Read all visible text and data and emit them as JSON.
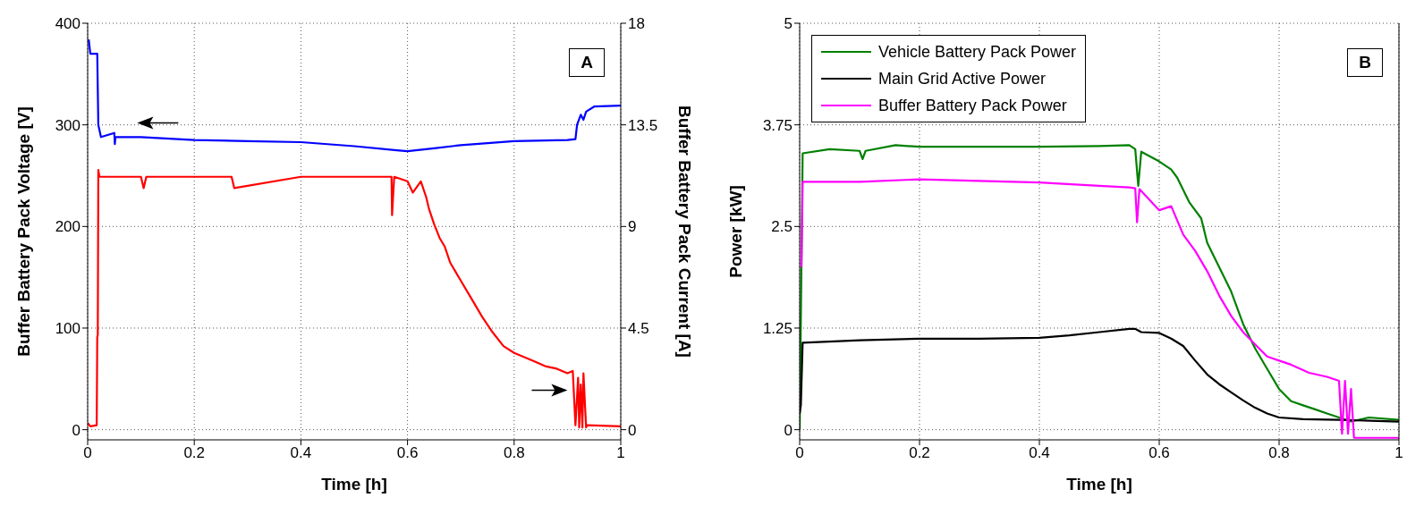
{
  "chart_data": [
    {
      "type": "line",
      "xlabel": "Time [h]",
      "ylabel": "Buffer Battery Pack Voltage [V]",
      "y2label": "Buffer Battery Pack Current [A]",
      "annotations": [
        "A"
      ],
      "xlim": [
        0,
        1
      ],
      "xticks": [
        0,
        0.2,
        0.4,
        0.6,
        0.8,
        1
      ],
      "ylim": [
        -10,
        400
      ],
      "yticks": [
        0,
        100,
        200,
        300,
        400
      ],
      "y2lim": [
        -0.45,
        18
      ],
      "y2ticks": [
        0,
        4.5,
        9,
        13.5,
        18
      ],
      "grid": true,
      "series": [
        {
          "color": "#0000ff",
          "x": [
            0.002,
            0.005,
            0.018,
            0.02,
            0.025,
            0.05,
            0.051,
            0.052,
            0.1,
            0.2,
            0.3,
            0.4,
            0.5,
            0.58,
            0.6,
            0.65,
            0.7,
            0.8,
            0.9,
            0.915,
            0.918,
            0.925,
            0.93,
            0.935,
            0.95,
            1
          ],
          "values": [
            384,
            370,
            370,
            300,
            288,
            292,
            281,
            288,
            288,
            285,
            284,
            283,
            279,
            275,
            274,
            277,
            280,
            284,
            285,
            286,
            300,
            310,
            305,
            313,
            318,
            319
          ]
        },
        {
          "color": "#ff0000",
          "axis": "y2",
          "x": [
            0,
            0.005,
            0.017,
            0.018,
            0.019,
            0.02,
            0.022,
            0.1,
            0.105,
            0.11,
            0.2,
            0.27,
            0.275,
            0.4,
            0.5,
            0.57,
            0.571,
            0.575,
            0.6,
            0.61,
            0.625,
            0.635,
            0.64,
            0.65,
            0.66,
            0.67,
            0.68,
            0.69,
            0.7,
            0.72,
            0.74,
            0.76,
            0.78,
            0.8,
            0.82,
            0.84,
            0.86,
            0.88,
            0.9,
            0.91,
            0.915,
            0.92,
            0.922,
            0.925,
            0.928,
            0.93,
            0.935,
            0.937,
            1
          ],
          "values": [
            0.3,
            0.15,
            0.2,
            4.1,
            4.2,
            11.5,
            11.2,
            11.2,
            10.7,
            11.2,
            11.2,
            11.2,
            10.7,
            11.2,
            11.2,
            11.2,
            9.5,
            11.2,
            11,
            10.5,
            11,
            10.3,
            9.8,
            9.1,
            8.5,
            8.1,
            7.4,
            7,
            6.6,
            5.8,
            5,
            4.3,
            3.7,
            3.4,
            3.2,
            3,
            2.8,
            2.7,
            2.5,
            2.6,
            0.2,
            2.3,
            0.1,
            2,
            0.1,
            2.5,
            0.1,
            0.2,
            0.15
          ]
        }
      ]
    },
    {
      "type": "line",
      "xlabel": "Time [h]",
      "ylabel": "Power [kW]",
      "annotations": [
        "B"
      ],
      "xlim": [
        0,
        1
      ],
      "xticks": [
        0,
        0.2,
        0.4,
        0.6,
        0.8,
        1
      ],
      "ylim": [
        -0.125,
        5
      ],
      "yticks": [
        0,
        1.25,
        2.5,
        3.75,
        5
      ],
      "grid": true,
      "legend": "top left",
      "series": [
        {
          "name": "Vehicle Battery Pack Power",
          "color": "#008000",
          "x": [
            0,
            0.005,
            0.05,
            0.1,
            0.105,
            0.11,
            0.16,
            0.2,
            0.3,
            0.4,
            0.5,
            0.55,
            0.56,
            0.565,
            0.57,
            0.6,
            0.62,
            0.63,
            0.65,
            0.67,
            0.68,
            0.7,
            0.72,
            0.74,
            0.76,
            0.78,
            0.8,
            0.82,
            0.84,
            0.86,
            0.88,
            0.9,
            0.92,
            0.95,
            1
          ],
          "values": [
            0,
            3.4,
            3.45,
            3.43,
            3.33,
            3.43,
            3.5,
            3.48,
            3.48,
            3.48,
            3.49,
            3.5,
            3.45,
            3,
            3.42,
            3.3,
            3.2,
            3.1,
            2.8,
            2.6,
            2.3,
            2,
            1.7,
            1.3,
            1,
            0.75,
            0.5,
            0.35,
            0.3,
            0.25,
            0.2,
            0.15,
            0.1,
            0.15,
            0.12
          ]
        },
        {
          "name": "Main Grid Active Power",
          "color": "#000000",
          "x": [
            0,
            0.002,
            0.005,
            0.1,
            0.2,
            0.3,
            0.4,
            0.45,
            0.5,
            0.55,
            0.56,
            0.57,
            0.6,
            0.62,
            0.64,
            0.66,
            0.68,
            0.7,
            0.72,
            0.74,
            0.76,
            0.78,
            0.8,
            0.84,
            0.9,
            1
          ],
          "values": [
            0.2,
            0.3,
            1.07,
            1.1,
            1.12,
            1.12,
            1.13,
            1.16,
            1.2,
            1.24,
            1.24,
            1.2,
            1.19,
            1.12,
            1.03,
            0.85,
            0.68,
            0.56,
            0.46,
            0.36,
            0.27,
            0.2,
            0.15,
            0.13,
            0.12,
            0.1
          ]
        },
        {
          "name": "Buffer Battery Pack Power",
          "color": "#ff00ff",
          "x": [
            0.003,
            0.005,
            0.05,
            0.1,
            0.2,
            0.3,
            0.4,
            0.5,
            0.55,
            0.56,
            0.563,
            0.567,
            0.6,
            0.62,
            0.64,
            0.66,
            0.68,
            0.7,
            0.72,
            0.74,
            0.76,
            0.78,
            0.8,
            0.82,
            0.85,
            0.88,
            0.9,
            0.905,
            0.91,
            0.915,
            0.92,
            0.925,
            1
          ],
          "values": [
            2,
            3.05,
            3.05,
            3.05,
            3.08,
            3.06,
            3.04,
            3,
            2.98,
            2.97,
            2.55,
            2.96,
            2.7,
            2.75,
            2.4,
            2.2,
            1.95,
            1.65,
            1.4,
            1.2,
            1.05,
            0.9,
            0.85,
            0.8,
            0.7,
            0.65,
            0.6,
            -0.05,
            0.6,
            -0.05,
            0.5,
            -0.1,
            -0.1
          ]
        }
      ]
    }
  ]
}
